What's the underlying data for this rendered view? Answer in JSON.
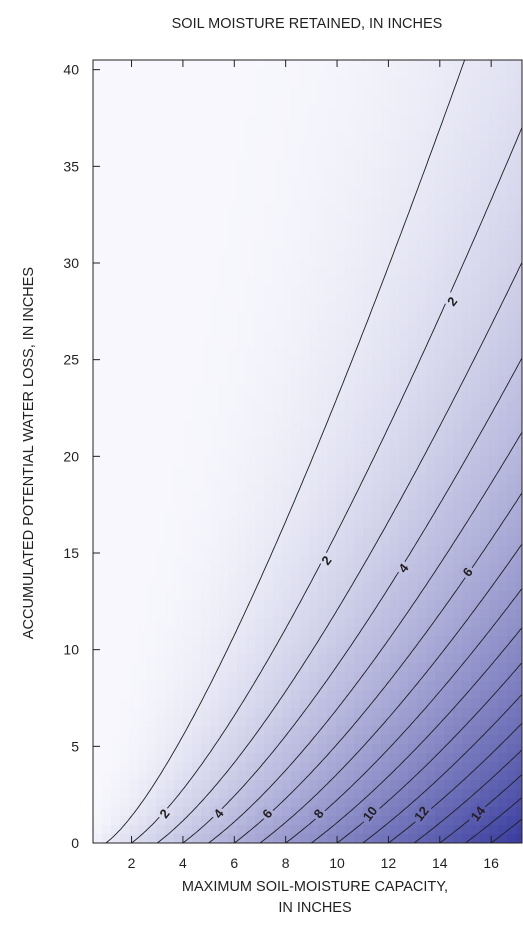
{
  "chart_data": {
    "type": "contour",
    "title": "SOIL MOISTURE RETAINED, IN INCHES",
    "xlabel_line1": "MAXIMUM SOIL-MOISTURE CAPACITY,",
    "xlabel_line2": "IN INCHES",
    "ylabel": "ACCUMULATED POTENTIAL WATER LOSS, IN INCHES",
    "xlim": [
      0.5,
      17.2
    ],
    "ylim": [
      0,
      40.5
    ],
    "x_ticks": [
      2,
      4,
      6,
      8,
      10,
      12,
      14,
      16
    ],
    "y_ticks": [
      0,
      5,
      10,
      15,
      20,
      25,
      30,
      35,
      40
    ],
    "x_tick_labels": [
      "2",
      "4",
      "6",
      "8",
      "10",
      "12",
      "14",
      "16"
    ],
    "y_tick_labels": [
      "0",
      "5",
      "10",
      "15",
      "20",
      "25",
      "30",
      "35",
      "40"
    ],
    "model": "retained = capacity * exp(-loss / capacity)",
    "contour_levels": [
      1,
      2,
      3,
      4,
      5,
      6,
      7,
      8,
      9,
      10,
      11,
      12,
      13,
      14,
      15,
      16
    ],
    "contour_labels": [
      {
        "text": "2",
        "x": 3.3,
        "y": 1.5
      },
      {
        "text": "4",
        "x": 5.4,
        "y": 1.5
      },
      {
        "text": "6",
        "x": 7.3,
        "y": 1.5
      },
      {
        "text": "8",
        "x": 9.3,
        "y": 1.5
      },
      {
        "text": "10",
        "x": 11.3,
        "y": 1.5
      },
      {
        "text": "12",
        "x": 13.3,
        "y": 1.5
      },
      {
        "text": "14",
        "x": 15.5,
        "y": 1.5
      },
      {
        "text": "2",
        "x": 9.6,
        "y": 14.6
      },
      {
        "text": "4",
        "x": 12.6,
        "y": 14.2
      },
      {
        "text": "6",
        "x": 15.1,
        "y": 14.0
      },
      {
        "text": "2",
        "x": 14.5,
        "y": 28.0
      }
    ],
    "colors": {
      "low": "#f7f7fd",
      "high": "#3a3d9e",
      "line": "#1e1e24",
      "text": "#231f20"
    }
  }
}
